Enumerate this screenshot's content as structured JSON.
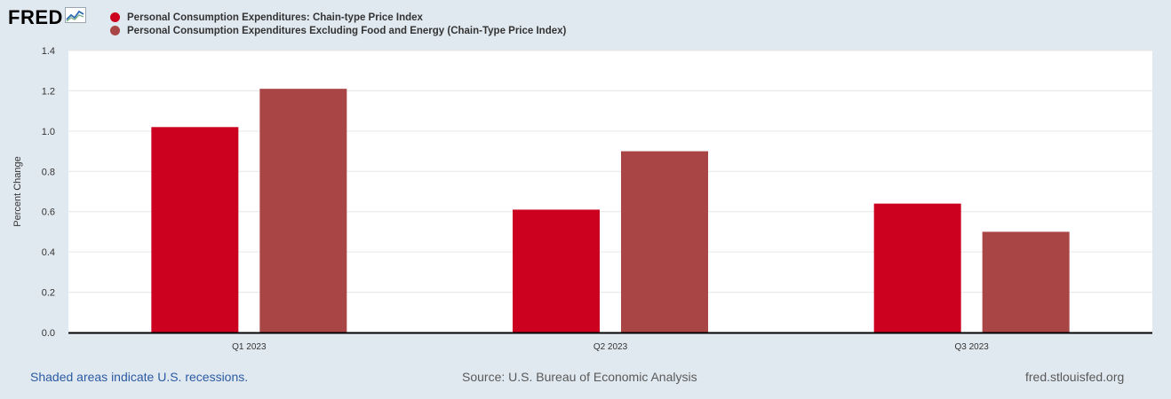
{
  "logo": {
    "text": "FRED",
    "icon": "chart-line-icon"
  },
  "legend": [
    {
      "name": "Personal Consumption Expenditures: Chain-type Price Index",
      "color": "#cc001f"
    },
    {
      "name": "Personal Consumption Expenditures Excluding Food and Energy (Chain-Type Price Index)",
      "color": "#a94545"
    }
  ],
  "footer": {
    "recession_note": "Shaded areas indicate U.S. recessions.",
    "source": "Source: U.S. Bureau of Economic Analysis",
    "site": "fred.stlouisfed.org"
  },
  "chart_data": {
    "type": "bar",
    "categories": [
      "Q1 2023",
      "Q2 2023",
      "Q3 2023"
    ],
    "series": [
      {
        "name": "Personal Consumption Expenditures: Chain-type Price Index",
        "color": "#cc001f",
        "values": [
          1.02,
          0.61,
          0.64
        ]
      },
      {
        "name": "Personal Consumption Expenditures Excluding Food and Energy (Chain-Type Price Index)",
        "color": "#a94545",
        "values": [
          1.21,
          0.9,
          0.5
        ]
      }
    ],
    "ylabel": "Percent Change",
    "ylim": [
      0,
      1.4
    ],
    "yticks": [
      "0.0",
      "0.2",
      "0.4",
      "0.6",
      "0.8",
      "1.0",
      "1.2",
      "1.4"
    ],
    "grid": true,
    "legend_position": "top-left"
  }
}
